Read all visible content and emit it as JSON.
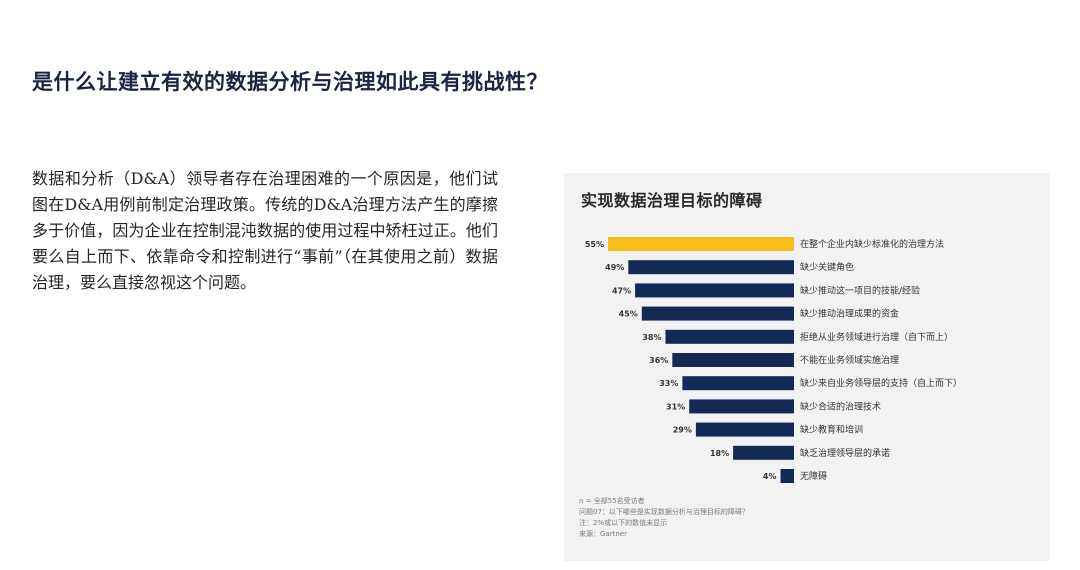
{
  "page": {
    "title": "是什么让建立有效的数据分析与治理如此具有挑战性？",
    "body": "数据和分析（D&A）领导者存在治理困难的一个原因是，他们试图在D&A用例前制定治理政策。传统的D&A治理方法产生的摩擦多于价值，因为企业在控制混沌数据的使用过程中矫枉过正。他们要么自上而下、依靠命令和控制进行“事前”（在其使用之前）数据治理，要么直接忽视这个问题。"
  },
  "chart_data": {
    "type": "bar",
    "orientation": "horizontal",
    "title": "实现数据治理目标的障碍",
    "categories": [
      "在整个企业内缺少标准化的治理方法",
      "缺少关键角色",
      "缺少推动这一项目的技能/经验",
      "缺少推动治理成果的资金",
      "拒绝从业务领域进行治理（自下而上）",
      "不能在业务领域实施治理",
      "缺少来自业务领导层的支持（自上而下）",
      "缺少合适的治理技术",
      "缺少教育和培训",
      "缺乏治理领导层的承诺",
      "无障碍"
    ],
    "values": [
      55,
      49,
      47,
      45,
      38,
      36,
      33,
      31,
      29,
      18,
      4
    ],
    "value_labels": [
      "55%",
      "49%",
      "47%",
      "45%",
      "38%",
      "36%",
      "33%",
      "31%",
      "29%",
      "18%",
      "4%"
    ],
    "bar_colors": [
      "#f7bf1e",
      "#142a54",
      "#142a54",
      "#142a54",
      "#142a54",
      "#142a54",
      "#142a54",
      "#142a54",
      "#142a54",
      "#142a54",
      "#142a54"
    ],
    "xlim": [
      0,
      55
    ],
    "grid": false,
    "legend": "none",
    "notes": [
      "n = 全部55名受访者",
      "问题07：以下哪些是实现数据分析与治理目标的障碍？",
      "注：2%或以下的数值未显示",
      "来源：Gartner"
    ]
  }
}
